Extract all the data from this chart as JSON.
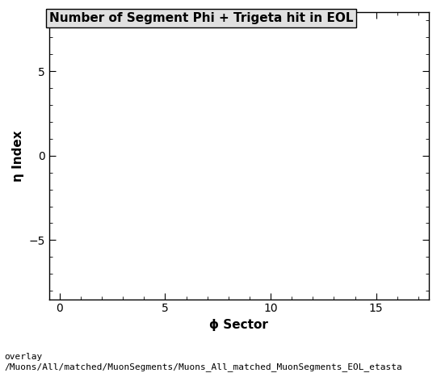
{
  "title": "Number of Segment Phi + Trigeta hit in EOL",
  "xlabel": "ϕ Sector",
  "ylabel": "η Index",
  "xlim": [
    -0.5,
    17.5
  ],
  "ylim": [
    -8.5,
    8.5
  ],
  "xticks": [
    0,
    5,
    10,
    15
  ],
  "yticks": [
    -5,
    0,
    5
  ],
  "caption_line1": "overlay",
  "caption_line2": "/Muons/All/matched/MuonSegments/Muons_All_matched_MuonSegments_EOL_etasta",
  "background_color": "#ffffff",
  "plot_bg_color": "#ffffff",
  "title_fontsize": 11,
  "axis_label_fontsize": 11,
  "tick_fontsize": 10,
  "caption_fontsize": 8
}
